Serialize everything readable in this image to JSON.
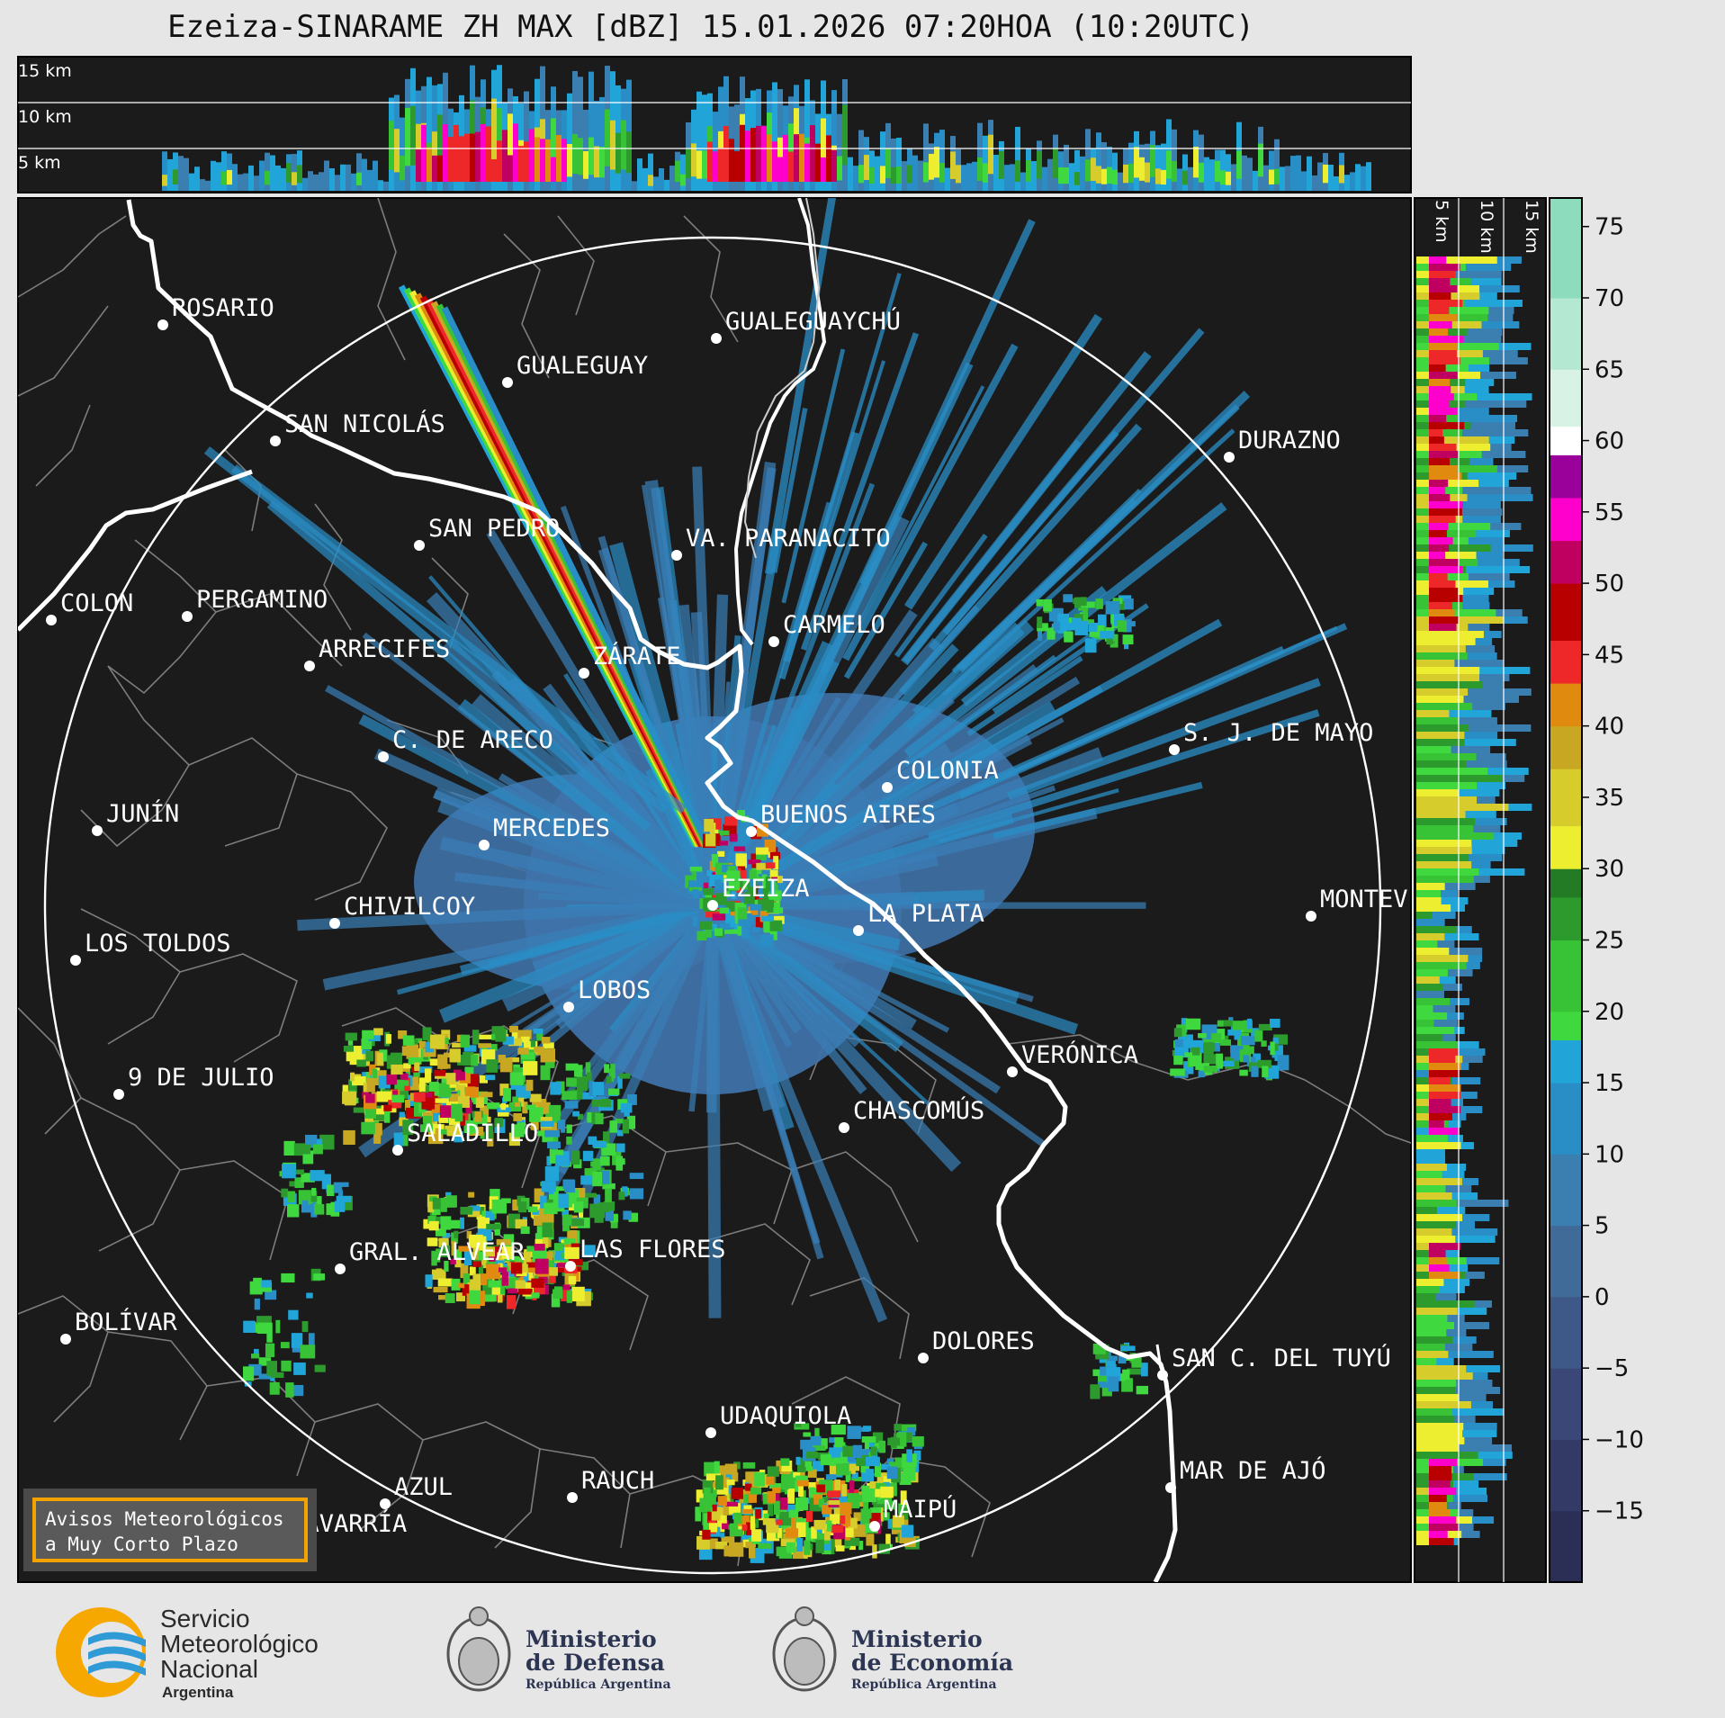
{
  "title": "Ezeiza-SINARAME ZH MAX [dBZ] 15.01.2026 07:20HOA (10:20UTC)",
  "top_profile": {
    "height_labels": [
      "15 km",
      "10 km",
      "5 km"
    ]
  },
  "side_profile": {
    "height_labels": [
      "5 km",
      "10 km",
      "15 km"
    ]
  },
  "colorbar": {
    "unit": "dBZ",
    "ticks": [
      "75",
      "70",
      "65",
      "60",
      "55",
      "50",
      "45",
      "40",
      "35",
      "30",
      "25",
      "20",
      "15",
      "10",
      "5",
      "0",
      "−5",
      "−10",
      "−15"
    ],
    "min": -20,
    "max": 77,
    "bands": [
      {
        "from": -20,
        "to": -15,
        "color": "#2b2f55"
      },
      {
        "from": -15,
        "to": -10,
        "color": "#333a66"
      },
      {
        "from": -10,
        "to": -5,
        "color": "#3a4777"
      },
      {
        "from": -5,
        "to": 0,
        "color": "#3e5888"
      },
      {
        "from": 0,
        "to": 5,
        "color": "#406a98"
      },
      {
        "from": 5,
        "to": 10,
        "color": "#3b7eb0"
      },
      {
        "from": 10,
        "to": 15,
        "color": "#2a8ec6"
      },
      {
        "from": 15,
        "to": 18,
        "color": "#21a5d8"
      },
      {
        "from": 18,
        "to": 20,
        "color": "#3fd93f"
      },
      {
        "from": 20,
        "to": 25,
        "color": "#38c236"
      },
      {
        "from": 25,
        "to": 28,
        "color": "#2d9a2d"
      },
      {
        "from": 28,
        "to": 30,
        "color": "#237b26"
      },
      {
        "from": 30,
        "to": 33,
        "color": "#eeee30"
      },
      {
        "from": 33,
        "to": 37,
        "color": "#d6cc2c"
      },
      {
        "from": 37,
        "to": 40,
        "color": "#c8a822"
      },
      {
        "from": 40,
        "to": 43,
        "color": "#e08a10"
      },
      {
        "from": 43,
        "to": 46,
        "color": "#ee2828"
      },
      {
        "from": 46,
        "to": 50,
        "color": "#b80000"
      },
      {
        "from": 50,
        "to": 53,
        "color": "#c00060"
      },
      {
        "from": 53,
        "to": 56,
        "color": "#ff00cc"
      },
      {
        "from": 56,
        "to": 59,
        "color": "#9a009a"
      },
      {
        "from": 59,
        "to": 61,
        "color": "#ffffff"
      },
      {
        "from": 61,
        "to": 65,
        "color": "#d8f2e6"
      },
      {
        "from": 65,
        "to": 70,
        "color": "#b4e8d2"
      },
      {
        "from": 70,
        "to": 77,
        "color": "#8ddcbd"
      }
    ]
  },
  "cities": [
    {
      "name": "ROSARIO"
    },
    {
      "name": "GUALEGUAYCHÚ"
    },
    {
      "name": "GUALEGUAY"
    },
    {
      "name": "SAN NICOLÁS"
    },
    {
      "name": "DURAZNO"
    },
    {
      "name": "SAN PEDRO"
    },
    {
      "name": "VA. PARANACITO"
    },
    {
      "name": "COLON"
    },
    {
      "name": "PERGAMINO"
    },
    {
      "name": "CARMELO"
    },
    {
      "name": "ARRECIFES"
    },
    {
      "name": "ZÁRATE"
    },
    {
      "name": "S. J. DE MAYO"
    },
    {
      "name": "C. DE ARECO"
    },
    {
      "name": "COLONIA"
    },
    {
      "name": "JUNÍN"
    },
    {
      "name": "BUENOS AIRES"
    },
    {
      "name": "MERCEDES"
    },
    {
      "name": "EZEIZA"
    },
    {
      "name": "MONTEV"
    },
    {
      "name": "CHIVILCOY"
    },
    {
      "name": "LA PLATA"
    },
    {
      "name": "LOS TOLDOS"
    },
    {
      "name": "LOBOS"
    },
    {
      "name": "VERÓNICA"
    },
    {
      "name": "9 DE JULIO"
    },
    {
      "name": "CHASCOMÚS"
    },
    {
      "name": "SALADILLO"
    },
    {
      "name": "GRAL. ALVEAR"
    },
    {
      "name": "LAS FLORES"
    },
    {
      "name": "BOLÍVAR"
    },
    {
      "name": "DOLORES"
    },
    {
      "name": "SAN C. DEL TUYÚ"
    },
    {
      "name": "UDAQUIOLA"
    },
    {
      "name": "MAR DE AJÓ"
    },
    {
      "name": "AZUL"
    },
    {
      "name": "RAUCH"
    },
    {
      "name": "OLAVARRÍA"
    },
    {
      "name": "MAIPÚ"
    }
  ],
  "warning_button": {
    "line1": "Avisos Meteorológicos",
    "line2": "a Muy Corto Plazo"
  },
  "footer": {
    "smn": {
      "line1": "Servicio",
      "line2": "Meteorológico",
      "line3": "Nacional",
      "line4": "Argentina"
    },
    "defensa": {
      "line1": "Ministerio",
      "line2": "de Defensa",
      "line3": "República Argentina"
    },
    "economia": {
      "line1": "Ministerio",
      "line2": "de Economía",
      "line3": "República Argentina"
    }
  }
}
